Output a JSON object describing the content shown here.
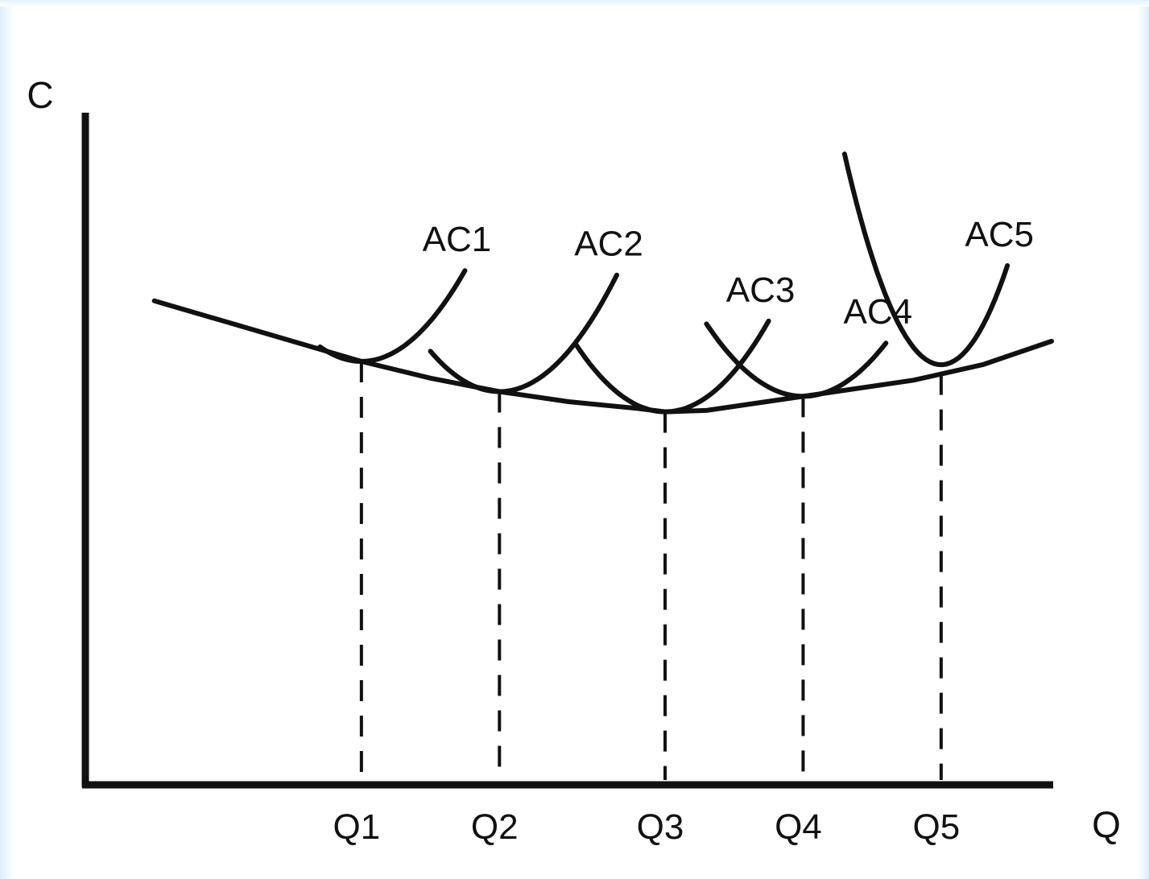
{
  "chart_data": {
    "type": "line",
    "title": "",
    "xlabel": "Q",
    "ylabel": "C",
    "xlim": [
      0,
      7
    ],
    "ylim": [
      0,
      10
    ],
    "grid": false,
    "legend": "none",
    "categories": [
      "Q1",
      "Q2",
      "Q3",
      "Q4",
      "Q5"
    ],
    "tangency_x": [
      2,
      3,
      4.2,
      5.2,
      6.2
    ],
    "long_run_curve": {
      "x": [
        0.5,
        1.0,
        1.5,
        2.0,
        2.5,
        3.0,
        3.5,
        4.0,
        4.2,
        4.5,
        5.0,
        5.5,
        6.0,
        6.5,
        7.0
      ],
      "y": [
        7.2,
        6.9,
        6.6,
        6.3,
        6.05,
        5.85,
        5.7,
        5.6,
        5.55,
        5.57,
        5.72,
        5.87,
        6.02,
        6.25,
        6.6
      ]
    },
    "series": [
      {
        "name": "AC1",
        "min_x": 2.0,
        "min_y": 6.3,
        "x_range": [
          1.7,
          2.75
        ]
      },
      {
        "name": "AC2",
        "min_x": 3.0,
        "min_y": 5.85,
        "x_range": [
          2.5,
          3.85
        ]
      },
      {
        "name": "AC3",
        "min_x": 4.2,
        "min_y": 5.55,
        "x_range": [
          3.55,
          4.95
        ]
      },
      {
        "name": "AC4",
        "min_x": 5.2,
        "min_y": 5.78,
        "x_range": [
          4.5,
          5.8
        ]
      },
      {
        "name": "AC5",
        "min_x": 6.2,
        "min_y": 6.25,
        "x_range": [
          5.5,
          6.68
        ]
      }
    ]
  },
  "colors": {
    "ink": "#111111",
    "background": "#ffffff"
  }
}
